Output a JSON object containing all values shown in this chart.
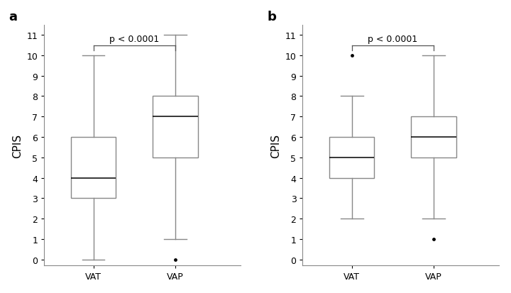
{
  "panel_a": {
    "label": "a",
    "VAT": {
      "q1": 3,
      "median": 4,
      "q3": 6,
      "whisker_low": 0,
      "whisker_high": 10,
      "outliers": []
    },
    "VAP": {
      "q1": 5,
      "median": 7,
      "q3": 8,
      "whisker_low": 1,
      "whisker_high": 11,
      "outliers": [
        0
      ]
    },
    "pvalue": "p < 0.0001",
    "ylabel": "CPIS",
    "ylim": [
      -0.3,
      11.5
    ],
    "yticks": [
      0,
      1,
      2,
      3,
      4,
      5,
      6,
      7,
      8,
      9,
      10,
      11
    ],
    "bracket_y": 10.5,
    "bracket_drop": 0.25,
    "pval_y": 10.6
  },
  "panel_b": {
    "label": "b",
    "VAT": {
      "q1": 4,
      "median": 5,
      "q3": 6,
      "whisker_low": 2,
      "whisker_high": 8,
      "outliers": [
        10
      ]
    },
    "VAP": {
      "q1": 5,
      "median": 6,
      "q3": 7,
      "whisker_low": 2,
      "whisker_high": 10,
      "outliers": [
        1
      ]
    },
    "pvalue": "p < 0.0001",
    "ylabel": "CPIS",
    "ylim": [
      -0.3,
      11.5
    ],
    "yticks": [
      0,
      1,
      2,
      3,
      4,
      5,
      6,
      7,
      8,
      9,
      10,
      11
    ],
    "bracket_y": 10.5,
    "bracket_drop": 0.25,
    "pval_y": 10.6
  },
  "box_edge_color": "#888888",
  "median_color": "#000000",
  "whisker_color": "#888888",
  "cap_color": "#888888",
  "outlier_color": "#000000",
  "background_color": "#ffffff",
  "box_width": 0.55,
  "categories": [
    "VAT",
    "VAP"
  ],
  "positions": [
    1,
    2
  ],
  "xlim": [
    0.4,
    2.8
  ],
  "bracket_color": "#555555",
  "tick_fontsize": 9,
  "label_fontsize": 11,
  "pval_fontsize": 9
}
